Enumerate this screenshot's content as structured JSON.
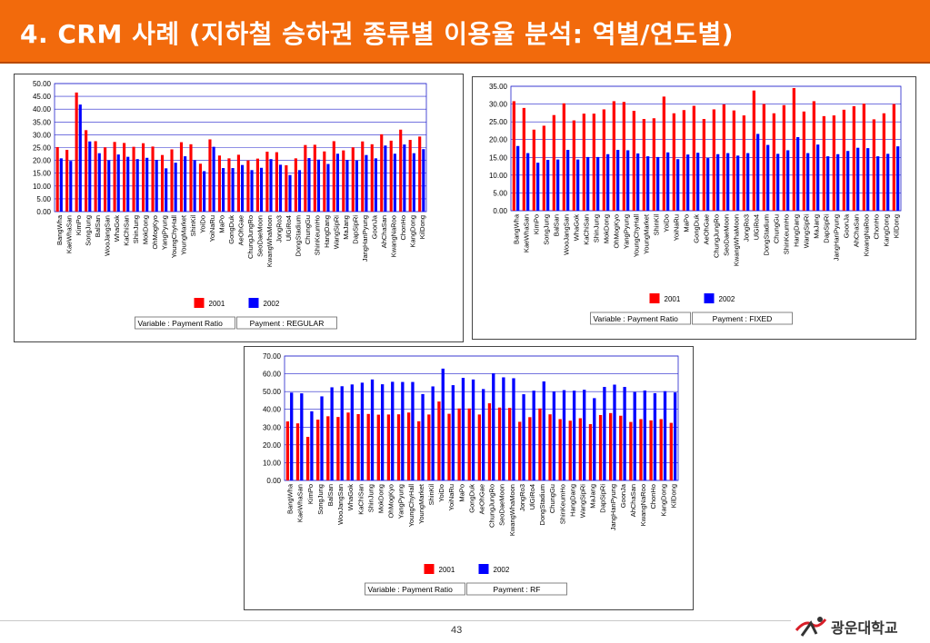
{
  "slide": {
    "title": "4. CRM 사례 (지하철 승하권 종류별 이용율 분석: 역별/연도별)",
    "page_number": "43",
    "logo_text": "광운대학교",
    "colors": {
      "header": "#f26a0c",
      "series_2001": "#ff0000",
      "series_2002": "#0000ff"
    }
  },
  "chart_data": [
    {
      "type": "bar",
      "ylim": [
        0,
        50
      ],
      "yticks": [
        "0.00",
        "5.00",
        "10.00",
        "15.00",
        "20.00",
        "25.00",
        "30.00",
        "35.00",
        "40.00",
        "45.00",
        "50.00"
      ],
      "grid": "horizontal",
      "legend": "bottom-center",
      "categories": [
        "BangWha",
        "KaeWhaSan",
        "KimPo",
        "SongJung",
        "BalSan",
        "WooJangSan",
        "WhaGok",
        "KaChiSan",
        "ShinJung",
        "MokDong",
        "OhMogKyo",
        "YangPyung",
        "YoungChyHall",
        "YoungMarket",
        "ShinKil",
        "YoiDo",
        "YoiNaRu",
        "MaPo",
        "GongDuk",
        "AeOhGae",
        "ChungJungRo",
        "SeoDaeMoon",
        "KwangWhaMoon",
        "JongRo3",
        "UlGiRo4",
        "DongStadium",
        "ChungGu",
        "ShinKeumHo",
        "HangDang",
        "WangSipRi",
        "MaJang",
        "DapSipRi",
        "JangHanPyung",
        "GoonJa",
        "AhChaSan",
        "KwangNaRoo",
        "ChonHo",
        "KangDong",
        "KilDong"
      ],
      "series": [
        {
          "name": "2001",
          "values": [
            25.2,
            24.1,
            46.5,
            31.8,
            27.5,
            25.1,
            27.2,
            26.8,
            25.3,
            26.7,
            25.4,
            22.1,
            24.3,
            27.1,
            26.3,
            18.7,
            28.2,
            21.9,
            20.8,
            22.2,
            20.0,
            20.7,
            23.4,
            23.2,
            18.1,
            20.8,
            26.0,
            26.1,
            23.5,
            27.5,
            23.9,
            25.1,
            27.4,
            26.3,
            30.2,
            27.7,
            32.0,
            28.0,
            29.3
          ]
        },
        {
          "name": "2002",
          "values": [
            20.8,
            19.8,
            41.8,
            27.4,
            22.8,
            20.1,
            22.3,
            21.4,
            20.5,
            21.0,
            20.2,
            16.9,
            19.1,
            21.6,
            20.1,
            15.8,
            25.3,
            17.0,
            17.0,
            18.2,
            16.2,
            17.1,
            20.5,
            18.3,
            14.3,
            16.2,
            20.9,
            20.3,
            18.6,
            22.6,
            20.2,
            20.0,
            22.1,
            20.8,
            25.8,
            22.6,
            26.2,
            22.8,
            24.4
          ]
        }
      ],
      "variable_label": "Variable : Payment Ratio",
      "payment_label": "Payment : REGULAR"
    },
    {
      "type": "bar",
      "ylim": [
        0,
        35
      ],
      "yticks": [
        "0.00",
        "5.00",
        "10.00",
        "15.00",
        "20.00",
        "25.00",
        "30.00",
        "35.00"
      ],
      "grid": "horizontal",
      "legend": "bottom-center",
      "categories": [
        "BangWha",
        "KaeWhaSan",
        "KimPo",
        "SongJung",
        "BalSan",
        "WooJangSan",
        "WhaGok",
        "KaChiSan",
        "ShinJung",
        "MokDong",
        "OhMogKyo",
        "YangPyung",
        "YoungChyHall",
        "YoungMarket",
        "ShinKil",
        "YoiDo",
        "YoiNaRu",
        "MaPo",
        "GongDuk",
        "AeOhGae",
        "ChungJungRo",
        "SeoDaeMoon",
        "KwangWhaMoon",
        "JongRo3",
        "UlGiRo4",
        "DongStadium",
        "ChungGu",
        "ShinKeumHo",
        "HangDang",
        "WangSipRi",
        "MaJang",
        "DapSipRi",
        "JangHanPyung",
        "GoonJa",
        "AhChaSan",
        "KwangNaRoo",
        "ChonHo",
        "KangDong",
        "KilDong"
      ],
      "series": [
        {
          "name": "2001",
          "values": [
            30.8,
            28.9,
            22.8,
            23.9,
            26.9,
            30.2,
            25.4,
            27.3,
            27.3,
            28.5,
            30.8,
            30.6,
            28.1,
            25.8,
            26.0,
            32.1,
            27.4,
            28.3,
            29.5,
            25.8,
            28.5,
            29.9,
            28.2,
            26.8,
            33.8,
            30.0,
            27.4,
            29.7,
            34.5,
            27.9,
            30.8,
            26.6,
            26.8,
            28.4,
            29.4,
            30.1,
            25.7,
            27.4,
            30.0
          ]
        },
        {
          "name": "2002",
          "values": [
            18.2,
            16.2,
            13.5,
            14.3,
            14.4,
            17.1,
            14.4,
            15.1,
            15.1,
            15.9,
            17.1,
            17.0,
            16.1,
            15.3,
            15.1,
            16.4,
            14.5,
            15.8,
            16.3,
            14.8,
            15.9,
            16.2,
            15.5,
            16.2,
            21.6,
            18.5,
            16.0,
            17.0,
            20.7,
            16.2,
            18.6,
            15.3,
            15.9,
            16.8,
            17.7,
            17.6,
            15.3,
            16.0,
            18.1
          ]
        }
      ],
      "variable_label": "Variable : Payment Ratio",
      "payment_label": "Payment : FIXED"
    },
    {
      "type": "bar",
      "ylim": [
        0,
        70
      ],
      "yticks": [
        "0.00",
        "10.00",
        "20.00",
        "30.00",
        "40.00",
        "50.00",
        "60.00",
        "70.00"
      ],
      "grid": "horizontal",
      "legend": "bottom-center",
      "categories": [
        "BangWha",
        "KaeWhaSan",
        "KimPo",
        "SongJung",
        "BalSan",
        "WooJangSan",
        "WhaGok",
        "KaChiSan",
        "ShinJung",
        "MokDong",
        "OhMogKyo",
        "YangPyung",
        "YoungChyHall",
        "YoungMarket",
        "ShinKil",
        "YoiDo",
        "YoiNaRu",
        "MaPo",
        "GongDuk",
        "AeOhGae",
        "ChungJungRo",
        "SeoDaeMoon",
        "KwangWhaMoon",
        "JongRo3",
        "UlGiRo4",
        "DongStadium",
        "ChungGu",
        "ShinKeumHo",
        "HangDang",
        "WangSipRi",
        "MaJang",
        "DapSipRi",
        "JangHanPyung",
        "GoonJa",
        "AhChaSan",
        "KwangNaRoo",
        "ChonHo",
        "KangDong",
        "KilDong"
      ],
      "series": [
        {
          "name": "2001",
          "values": [
            33.2,
            32.1,
            24.5,
            34.2,
            36.1,
            35.7,
            38.2,
            37.3,
            37.4,
            37.0,
            37.1,
            37.2,
            38.2,
            33.3,
            37.1,
            44.4,
            37.5,
            40.5,
            40.5,
            37.1,
            43.4,
            41.0,
            40.8,
            33.0,
            35.6,
            40.5,
            37.2,
            34.5,
            33.6,
            35.0,
            31.7,
            36.8,
            37.9,
            36.4,
            32.9,
            34.5,
            33.8,
            34.5,
            32.4
          ]
        },
        {
          "name": "2002",
          "values": [
            49.4,
            49.0,
            38.9,
            47.3,
            52.4,
            53.0,
            54.0,
            55.0,
            56.8,
            54.1,
            55.5,
            55.4,
            55.4,
            48.6,
            52.9,
            62.9,
            53.6,
            57.7,
            56.8,
            51.4,
            60.3,
            58.0,
            57.5,
            48.5,
            50.5,
            55.7,
            50.0,
            50.8,
            50.5,
            51.0,
            46.3,
            52.6,
            53.9,
            52.6,
            49.7,
            50.6,
            49.1,
            50.2,
            49.5
          ]
        }
      ],
      "variable_label": "Variable : Payment Ratio",
      "payment_label": "Payment : RF"
    }
  ]
}
